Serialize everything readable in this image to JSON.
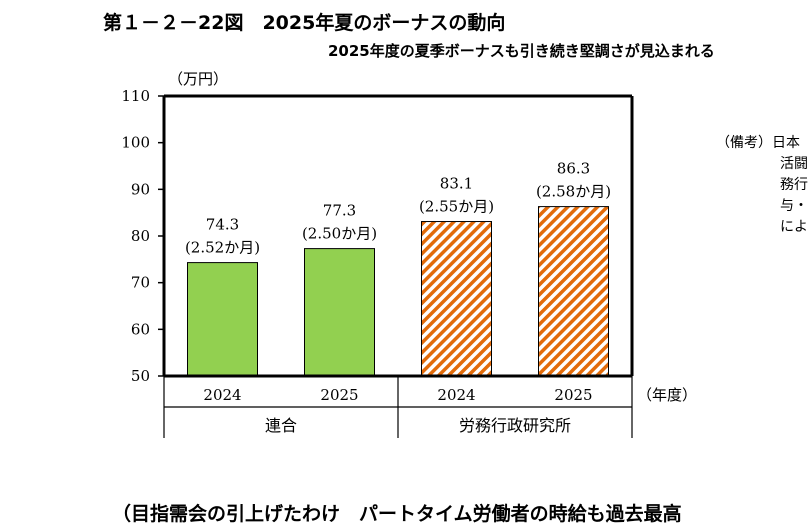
{
  "title": "第１－２－22図　2025年夏のボーナスの動向",
  "subtitle": "2025年度の夏季ボーナスも引き続き堅調さが見込まれる",
  "notes": {
    "label": "（備考）",
    "lines": [
      "日本",
      "活闘",
      "務行",
      "与・",
      "によ"
    ]
  },
  "bottom_text": "（目指需会の引上げたわけ　パートタイム労働者の時給も過去最高",
  "chart_data": {
    "type": "bar",
    "unit_label": "（万円）",
    "x_axis_label": "（年度）",
    "ylim": [
      50,
      110
    ],
    "yticks": [
      50,
      60,
      70,
      80,
      90,
      100,
      110
    ],
    "categories": [
      "2024",
      "2025",
      "2024",
      "2025"
    ],
    "groups": [
      {
        "name": "連合",
        "categories": [
          0,
          1
        ]
      },
      {
        "name": "労務行政研究所",
        "categories": [
          2,
          3
        ]
      }
    ],
    "values": [
      74.3,
      77.3,
      83.1,
      86.3
    ],
    "value_labels": [
      "74.3",
      "77.3",
      "83.1",
      "86.3"
    ],
    "month_labels": [
      "(2.52か月)",
      "(2.50か月)",
      "(2.55か月)",
      "(2.58か月)"
    ],
    "bar_styles": [
      "solid",
      "solid",
      "hatched",
      "hatched"
    ],
    "colors": {
      "solid": "#92d050",
      "hatch": "#e26b0a",
      "hatch_bg": "#ffffff"
    }
  }
}
